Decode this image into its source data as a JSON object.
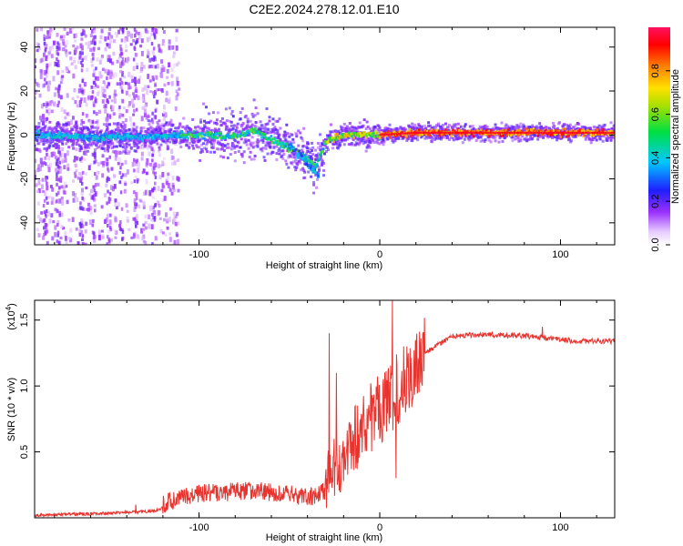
{
  "title": "C2E2.2024.278.12.01.E10",
  "chart_data": [
    {
      "type": "heatmap",
      "xlabel": "Height of straight line (km)",
      "ylabel": "Frequency (Hz)",
      "xlim": [
        -191,
        130
      ],
      "ylim": [
        -50,
        49
      ],
      "x_ticks": [
        -100,
        0,
        100
      ],
      "x_tick_labels": [
        "-100",
        "0",
        "100"
      ],
      "y_ticks": [
        -40,
        -20,
        0,
        20,
        40
      ],
      "y_tick_labels": [
        "-40",
        "-20",
        "0",
        "20",
        "40"
      ],
      "colorbar": {
        "label": "Normalized spectral amplitude",
        "range": [
          0,
          1
        ],
        "ticks": [
          0,
          0.2,
          0.4,
          0.6,
          0.8
        ],
        "tick_labels": [
          "0.0",
          "0.2",
          "0.4",
          "0.6",
          "0.8"
        ],
        "colormap": "rainbow (white-violet-blue-cyan-green-yellow-orange-red-magenta)"
      },
      "ridge": {
        "description": "Strong spectral ridge near 0 Hz that curves downward between -70 and -35 km, with diffuse noise for heights below -110 km",
        "points": [
          {
            "x": -185,
            "y": 0
          },
          {
            "x": -160,
            "y": -1
          },
          {
            "x": -130,
            "y": -1
          },
          {
            "x": -110,
            "y": 0
          },
          {
            "x": -95,
            "y": 0
          },
          {
            "x": -80,
            "y": -1
          },
          {
            "x": -70,
            "y": 2
          },
          {
            "x": -60,
            "y": -2
          },
          {
            "x": -50,
            "y": -6
          },
          {
            "x": -42,
            "y": -10
          },
          {
            "x": -35,
            "y": -14
          },
          {
            "x": -30,
            "y": -3
          },
          {
            "x": -20,
            "y": 0
          },
          {
            "x": -10,
            "y": 0
          },
          {
            "x": 0,
            "y": 0
          },
          {
            "x": 20,
            "y": 1
          },
          {
            "x": 50,
            "y": 1
          },
          {
            "x": 90,
            "y": 1
          },
          {
            "x": 130,
            "y": 1
          }
        ]
      }
    },
    {
      "type": "line",
      "xlabel": "Height of straight line (km)",
      "ylabel": "SNR (10 * v/v)",
      "y_multiplier": "(x10",
      "y_multiplier_exp": "4",
      "xlim": [
        -191,
        130
      ],
      "ylim": [
        0,
        1.65
      ],
      "x_ticks": [
        -100,
        0,
        100
      ],
      "x_tick_labels": [
        "-100",
        "0",
        "100"
      ],
      "y_ticks": [
        0.5,
        1.0,
        1.5
      ],
      "y_tick_labels": [
        "0.5",
        "1.0",
        "1.5"
      ],
      "series": [
        {
          "color": "#e8342f",
          "trend": [
            {
              "x": -191,
              "y": 0.02
            },
            {
              "x": -160,
              "y": 0.03
            },
            {
              "x": -140,
              "y": 0.04
            },
            {
              "x": -125,
              "y": 0.05
            },
            {
              "x": -115,
              "y": 0.1
            },
            {
              "x": -100,
              "y": 0.16
            },
            {
              "x": -80,
              "y": 0.17
            },
            {
              "x": -60,
              "y": 0.17
            },
            {
              "x": -45,
              "y": 0.14
            },
            {
              "x": -35,
              "y": 0.13
            },
            {
              "x": -30,
              "y": 0.18
            },
            {
              "x": -25,
              "y": 0.4
            },
            {
              "x": -15,
              "y": 0.6
            },
            {
              "x": -5,
              "y": 0.75
            },
            {
              "x": 5,
              "y": 0.9
            },
            {
              "x": 15,
              "y": 1.05
            },
            {
              "x": 25,
              "y": 1.25
            },
            {
              "x": 40,
              "y": 1.38
            },
            {
              "x": 60,
              "y": 1.39
            },
            {
              "x": 80,
              "y": 1.38
            },
            {
              "x": 95,
              "y": 1.36
            },
            {
              "x": 110,
              "y": 1.34
            },
            {
              "x": 130,
              "y": 1.34
            }
          ],
          "notable_peaks": [
            {
              "x": -135,
              "y": 0.1
            },
            {
              "x": -28,
              "y": 1.4
            },
            {
              "x": -24,
              "y": 1.1
            },
            {
              "x": 7,
              "y": 1.65
            },
            {
              "x": 9,
              "y": 0.3
            },
            {
              "x": 90,
              "y": 1.45
            }
          ]
        }
      ]
    }
  ]
}
